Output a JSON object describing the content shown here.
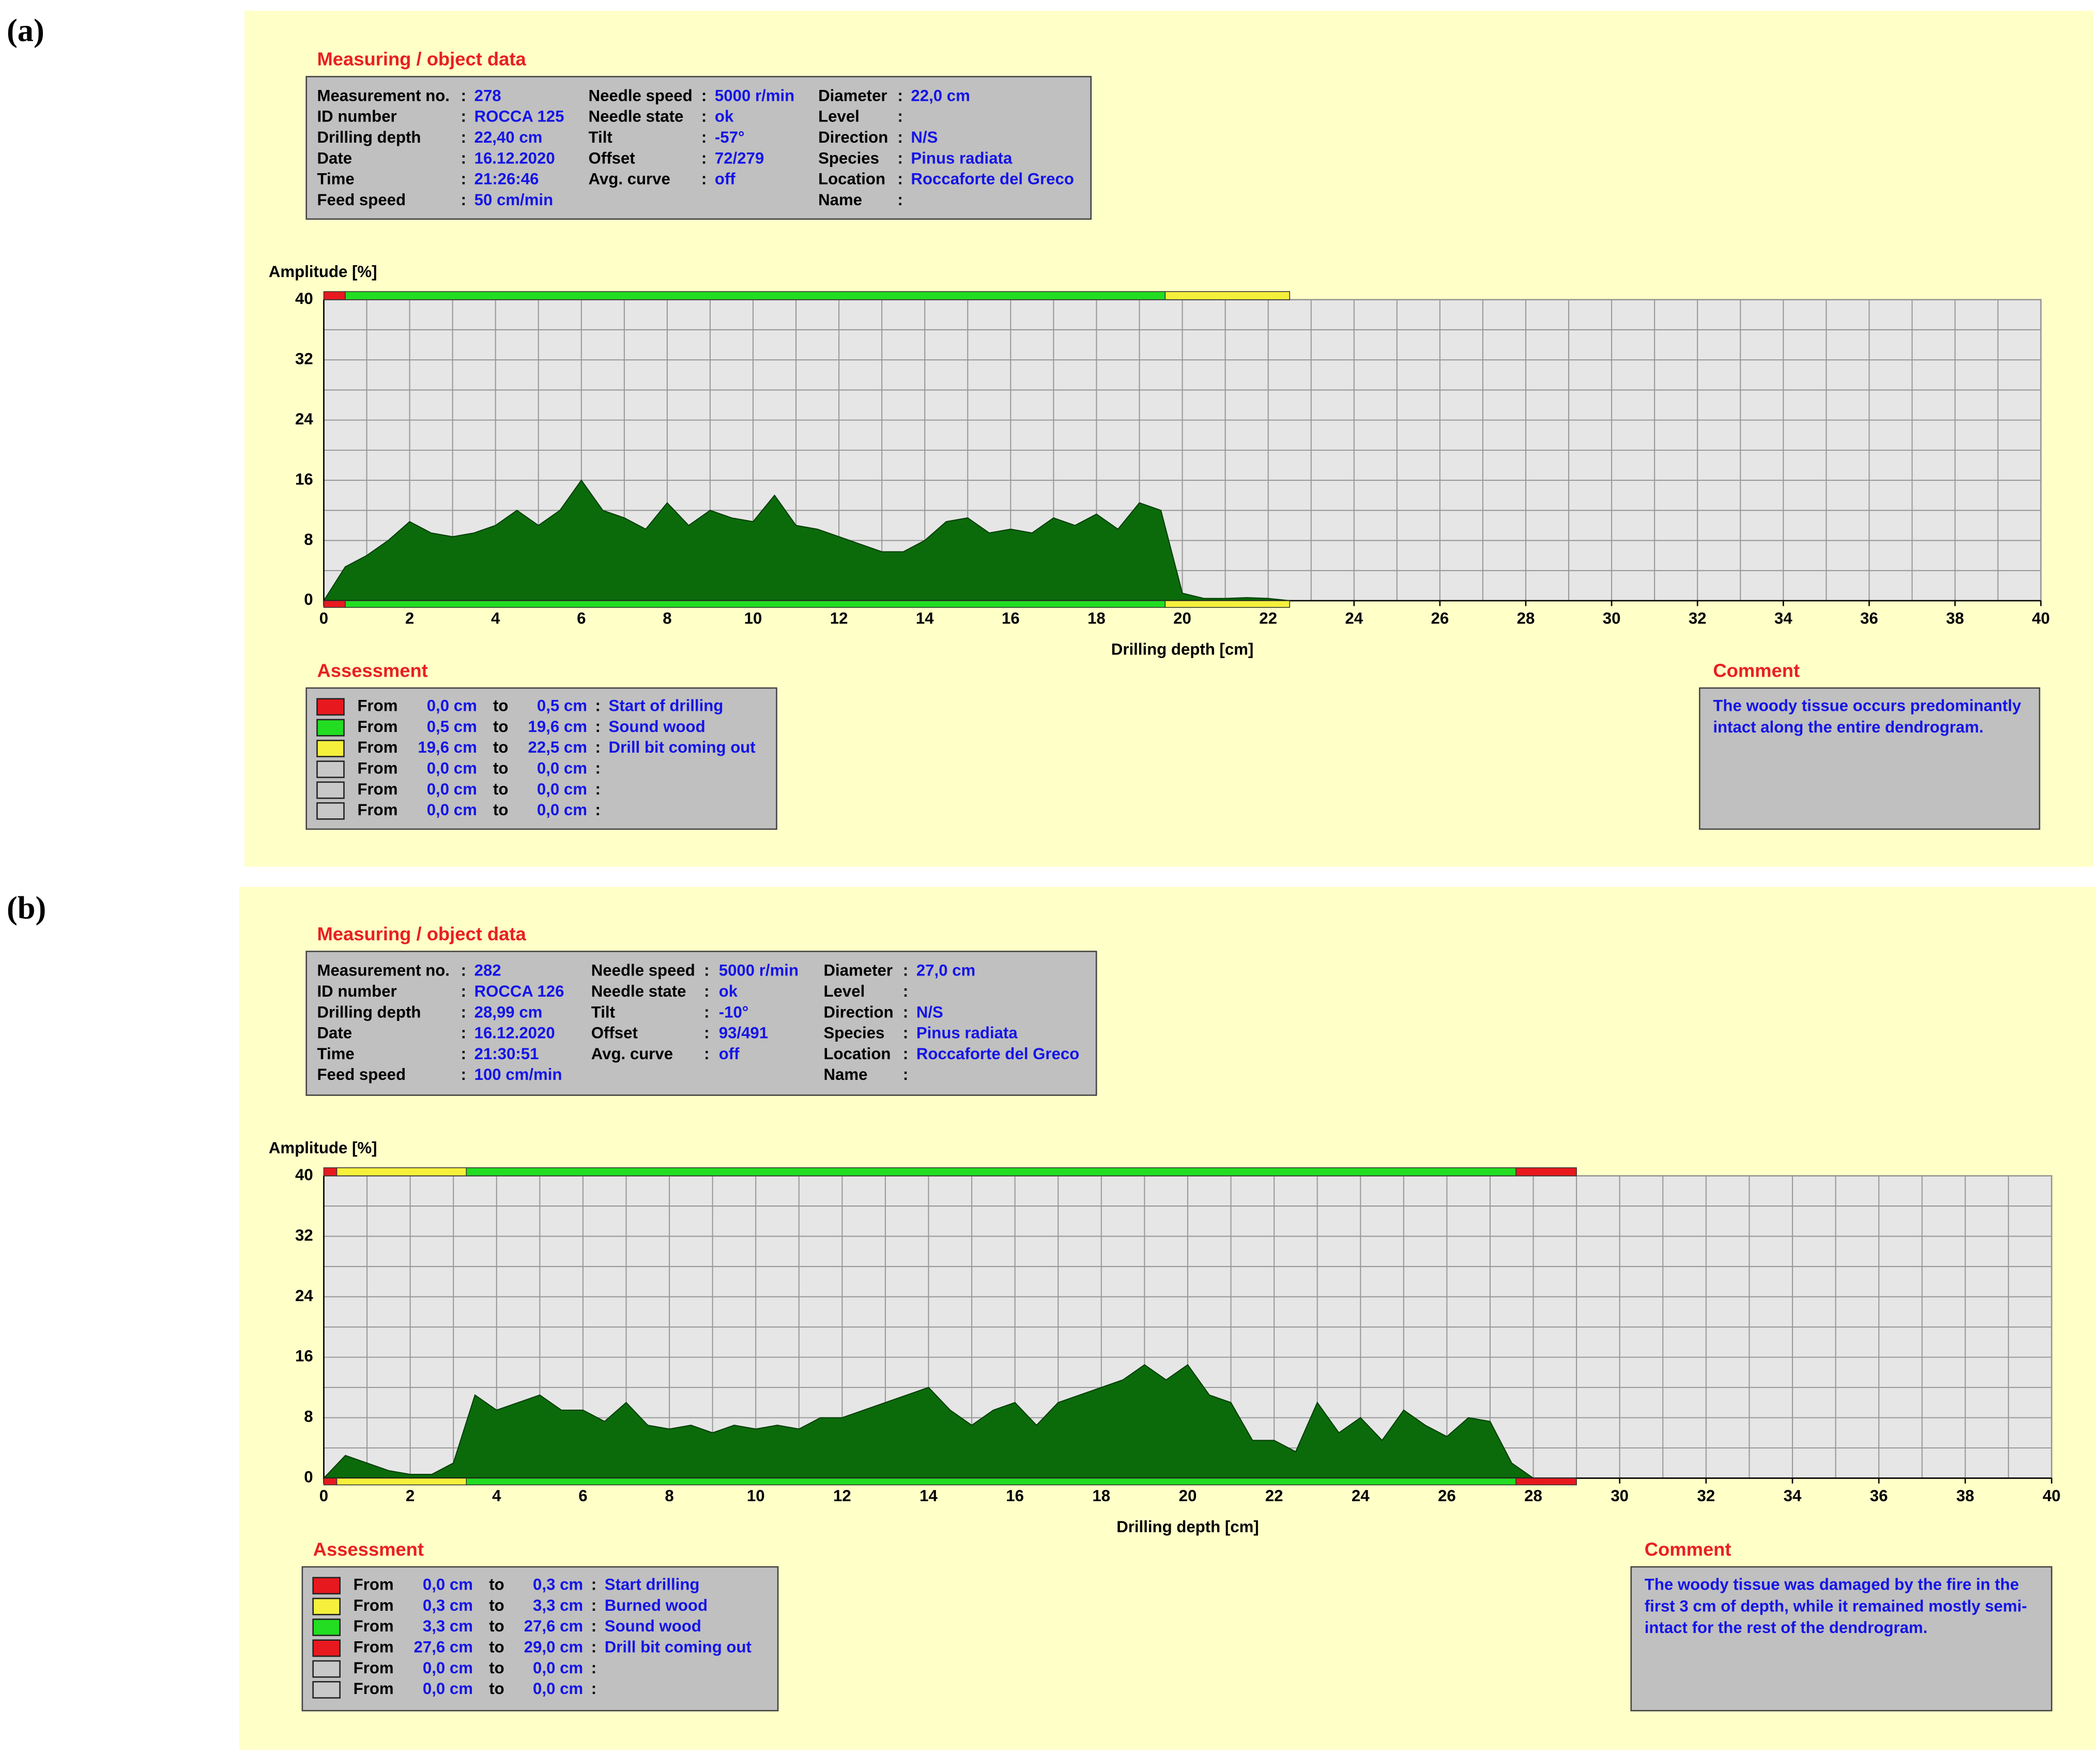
{
  "chart_data": [
    {
      "type": "area",
      "panel_label": "(a)",
      "info_title": "Measuring / object data",
      "sep": ":",
      "info": [
        [
          {
            "label": "Measurement no.",
            "value": "278"
          },
          {
            "label": "ID number",
            "value": "ROCCA 125"
          },
          {
            "label": "Drilling depth",
            "value": "22,40 cm"
          },
          {
            "label": "Date",
            "value": "16.12.2020"
          },
          {
            "label": "Time",
            "value": "21:26:46"
          },
          {
            "label": "Feed speed",
            "value": "50 cm/min"
          }
        ],
        [
          {
            "label": "Needle speed",
            "value": "5000 r/min"
          },
          {
            "label": "Needle state",
            "value": "ok"
          },
          {
            "label": "Tilt",
            "value": "-57°"
          },
          {
            "label": "Offset",
            "value": "72/279"
          },
          {
            "label": "Avg. curve",
            "value": "off"
          }
        ],
        [
          {
            "label": "Diameter",
            "value": "22,0 cm"
          },
          {
            "label": "Level"
          },
          {
            "label": "Direction",
            "value": "N/S"
          },
          {
            "label": "Species",
            "value": "Pinus radiata"
          },
          {
            "label": "Location",
            "value": "Roccaforte del Greco"
          },
          {
            "label": "Name"
          }
        ]
      ],
      "y_label": "Amplitude [%]",
      "x_label": "Drilling depth [cm]",
      "xlim": [
        0,
        40
      ],
      "xticks": [
        0,
        2,
        4,
        6,
        8,
        10,
        12,
        14,
        16,
        18,
        20,
        22,
        24,
        26,
        28,
        30,
        32,
        34,
        36,
        38,
        40
      ],
      "ylim": [
        0,
        40
      ],
      "yticks": [
        0,
        8,
        16,
        24,
        32,
        40
      ],
      "grid": true,
      "color": "#0b6b0b",
      "x": [
        0,
        0.5,
        1,
        1.5,
        2,
        2.5,
        3,
        3.5,
        4,
        4.5,
        5,
        5.5,
        6,
        6.5,
        7,
        7.5,
        8,
        8.5,
        9,
        9.5,
        10,
        10.5,
        11,
        11.5,
        12,
        12.5,
        13,
        13.5,
        14,
        14.5,
        15,
        15.5,
        16,
        16.5,
        17,
        17.5,
        18,
        18.5,
        19,
        19.5,
        20,
        20.5,
        21,
        21.5,
        22,
        22.5
      ],
      "values": [
        0,
        4.5,
        6,
        8,
        10.5,
        9,
        8.5,
        9,
        10,
        12,
        10,
        12,
        16,
        12,
        11,
        9.5,
        13,
        10,
        12,
        11,
        10.5,
        14,
        10,
        9.5,
        8.5,
        7.5,
        6.5,
        6.5,
        8,
        10.5,
        11,
        9,
        9.5,
        9,
        11,
        10,
        11.5,
        9.5,
        13,
        12,
        1,
        0.3,
        0.3,
        0.4,
        0.3,
        0
      ],
      "assessment_title": "Assessment",
      "from_word": "From",
      "to_word": "to",
      "assessment": [
        {
          "from": {
            "value": 0,
            "label": "0,0 cm"
          },
          "to": {
            "value": 0.5,
            "label": "0,5 cm"
          },
          "text": "Start of drilling",
          "color": "#e8191e"
        },
        {
          "from": {
            "value": 0.5,
            "label": "0,5 cm"
          },
          "to": {
            "value": 19.6,
            "label": "19,6 cm"
          },
          "text": "Sound wood",
          "color": "#22dd22"
        },
        {
          "from": {
            "value": 19.6,
            "label": "19,6 cm"
          },
          "to": {
            "value": 22.5,
            "label": "22,5 cm"
          },
          "text": "Drill bit coming out",
          "color": "#f5f03c"
        },
        {
          "from": {
            "value": 0,
            "label": "0,0 cm"
          },
          "to": {
            "value": 0,
            "label": "0,0 cm"
          },
          "color": "#c8c8c8"
        },
        {
          "from": {
            "value": 0,
            "label": "0,0 cm"
          },
          "to": {
            "value": 0,
            "label": "0,0 cm"
          },
          "color": "#c8c8c8"
        },
        {
          "from": {
            "value": 0,
            "label": "0,0 cm"
          },
          "to": {
            "value": 0,
            "label": "0,0 cm"
          },
          "color": "#c8c8c8"
        }
      ],
      "comment_title": "Comment",
      "comment": [
        "The woody tissue occurs predominantly",
        "intact along the entire dendrogram."
      ]
    },
    {
      "type": "area",
      "panel_label": "(b)",
      "info_title": "Measuring / object data",
      "sep": ":",
      "info": [
        [
          {
            "label": "Measurement no.",
            "value": "282"
          },
          {
            "label": "ID number",
            "value": "ROCCA 126"
          },
          {
            "label": "Drilling depth",
            "value": "28,99 cm"
          },
          {
            "label": "Date",
            "value": "16.12.2020"
          },
          {
            "label": "Time",
            "value": "21:30:51"
          },
          {
            "label": "Feed speed",
            "value": "100 cm/min"
          }
        ],
        [
          {
            "label": "Needle speed",
            "value": "5000 r/min"
          },
          {
            "label": "Needle state",
            "value": "ok"
          },
          {
            "label": "Tilt",
            "value": "-10°"
          },
          {
            "label": "Offset",
            "value": "93/491"
          },
          {
            "label": "Avg. curve",
            "value": "off"
          }
        ],
        [
          {
            "label": "Diameter",
            "value": "27,0 cm"
          },
          {
            "label": "Level"
          },
          {
            "label": "Direction",
            "value": "N/S"
          },
          {
            "label": "Species",
            "value": "Pinus radiata"
          },
          {
            "label": "Location",
            "value": "Roccaforte del Greco"
          },
          {
            "label": "Name"
          }
        ]
      ],
      "y_label": "Amplitude [%]",
      "x_label": "Drilling depth [cm]",
      "xlim": [
        0,
        40
      ],
      "xticks": [
        0,
        2,
        4,
        6,
        8,
        10,
        12,
        14,
        16,
        18,
        20,
        22,
        24,
        26,
        28,
        30,
        32,
        34,
        36,
        38,
        40
      ],
      "ylim": [
        0,
        40
      ],
      "yticks": [
        0,
        8,
        16,
        24,
        32,
        40
      ],
      "grid": true,
      "color": "#0b6b0b",
      "x": [
        0,
        0.5,
        1,
        1.5,
        2,
        2.5,
        3,
        3.5,
        4,
        4.5,
        5,
        5.5,
        6,
        6.5,
        7,
        7.5,
        8,
        8.5,
        9,
        9.5,
        10,
        10.5,
        11,
        11.5,
        12,
        12.5,
        13,
        13.5,
        14,
        14.5,
        15,
        15.5,
        16,
        16.5,
        17,
        17.5,
        18,
        18.5,
        19,
        19.5,
        20,
        20.5,
        21,
        21.5,
        22,
        22.5,
        23,
        23.5,
        24,
        24.5,
        25,
        25.5,
        26,
        26.5,
        27,
        27.5,
        28,
        28.5,
        29
      ],
      "values": [
        0,
        3,
        2,
        1,
        0.5,
        0.5,
        2,
        11,
        9,
        10,
        11,
        9,
        9,
        7.5,
        10,
        7,
        6.5,
        7,
        6,
        7,
        6.5,
        7,
        6.5,
        8,
        8,
        9,
        10,
        11,
        12,
        9,
        7,
        9,
        10,
        7,
        10,
        11,
        12,
        13,
        15,
        13,
        15,
        11,
        10,
        5,
        5,
        3.5,
        10,
        6,
        8,
        5,
        9,
        7,
        5.5,
        8,
        7.5,
        2,
        0,
        0,
        0
      ],
      "assessment_title": "Assessment",
      "from_word": "From",
      "to_word": "to",
      "assessment": [
        {
          "from": {
            "value": 0,
            "label": "0,0 cm"
          },
          "to": {
            "value": 0.3,
            "label": "0,3 cm"
          },
          "text": "Start drilling",
          "color": "#e8191e"
        },
        {
          "from": {
            "value": 0.3,
            "label": "0,3 cm"
          },
          "to": {
            "value": 3.3,
            "label": "3,3 cm"
          },
          "text": "Burned wood",
          "color": "#f5f03c"
        },
        {
          "from": {
            "value": 3.3,
            "label": "3,3 cm"
          },
          "to": {
            "value": 27.6,
            "label": "27,6 cm"
          },
          "text": "Sound wood",
          "color": "#22dd22"
        },
        {
          "from": {
            "value": 27.6,
            "label": "27,6 cm"
          },
          "to": {
            "value": 29.0,
            "label": "29,0 cm"
          },
          "text": "Drill bit coming out",
          "color": "#e8191e"
        },
        {
          "from": {
            "value": 0,
            "label": "0,0 cm"
          },
          "to": {
            "value": 0,
            "label": "0,0 cm"
          },
          "color": "#c8c8c8"
        },
        {
          "from": {
            "value": 0,
            "label": "0,0 cm"
          },
          "to": {
            "value": 0,
            "label": "0,0 cm"
          },
          "color": "#c8c8c8"
        }
      ],
      "comment_title": "Comment",
      "comment": [
        "The woody tissue was damaged by the fire in the",
        "first 3 cm of depth, while it remained mostly semi-",
        "intact for the rest of the dendrogram."
      ]
    }
  ]
}
